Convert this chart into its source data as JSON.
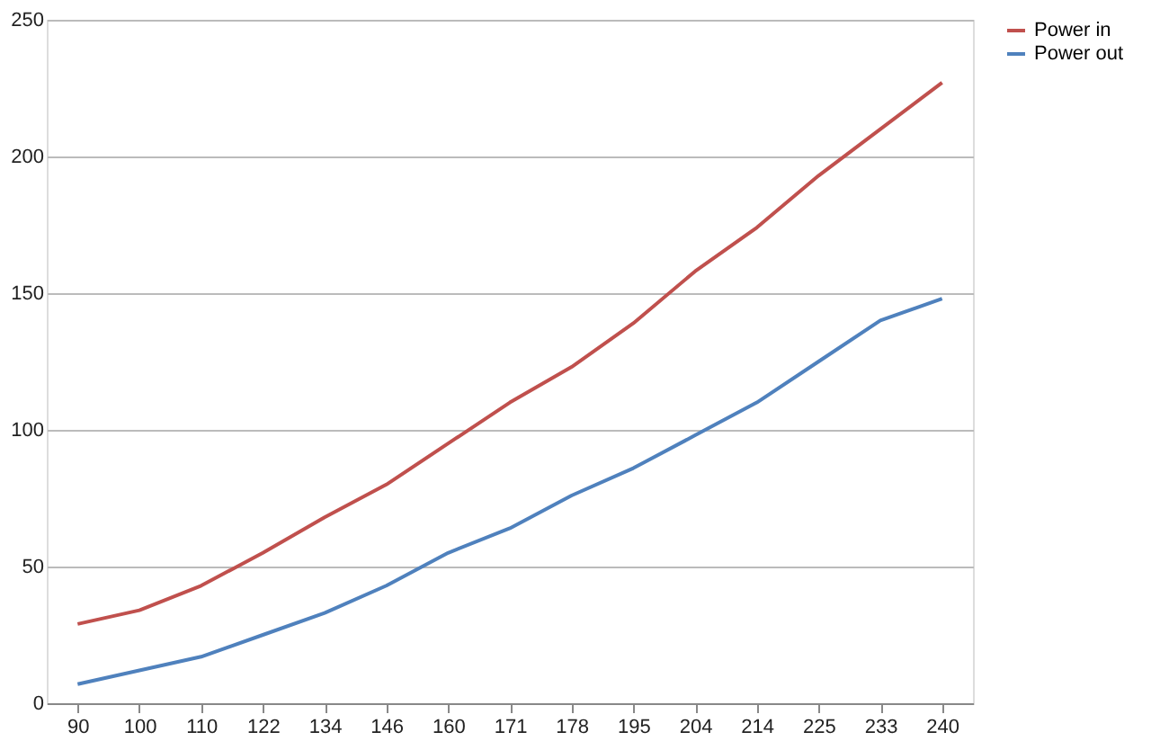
{
  "chart_data": {
    "type": "line",
    "categories": [
      "90",
      "100",
      "110",
      "122",
      "134",
      "146",
      "160",
      "171",
      "178",
      "195",
      "204",
      "214",
      "225",
      "233",
      "240"
    ],
    "series": [
      {
        "name": "Power in",
        "color": "#c0504d",
        "values": [
          29,
          34,
          43,
          55,
          68,
          80,
          95,
          110,
          123,
          139,
          158,
          174,
          193,
          210,
          227
        ]
      },
      {
        "name": "Power out",
        "color": "#4f81bd",
        "values": [
          7,
          12,
          17,
          25,
          33,
          43,
          55,
          64,
          76,
          86,
          98,
          110,
          125,
          140,
          148
        ]
      }
    ],
    "ylim": [
      0,
      250
    ],
    "yticks": [
      0,
      50,
      100,
      150,
      200,
      250
    ],
    "grid": "y",
    "legend": "right",
    "marker": "none",
    "line_style": "solid"
  }
}
